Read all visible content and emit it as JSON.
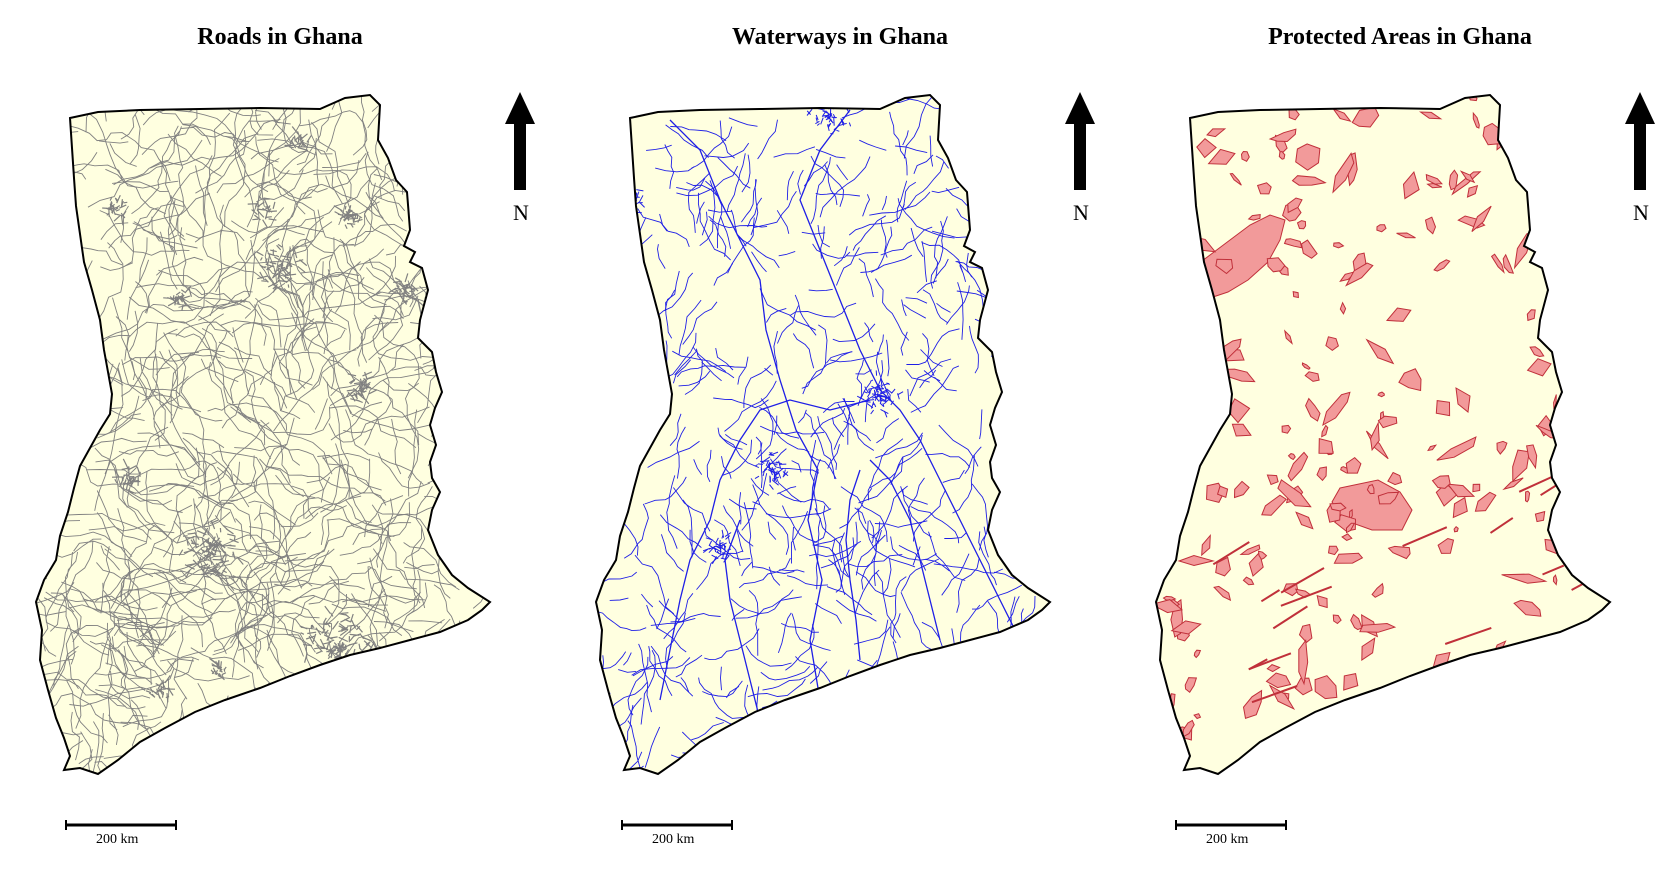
{
  "maps": [
    {
      "title": "Roads in Ghana",
      "layer": "roads",
      "feature_color": "#808080"
    },
    {
      "title": "Waterways in Ghana",
      "layer": "waterways",
      "feature_color": "#1f1fe6"
    },
    {
      "title": "Protected Areas in Ghana",
      "layer": "protected",
      "feature_color": "#e06b6b"
    }
  ],
  "north_label": "N",
  "scale_label": "200 km",
  "colors": {
    "land": "#ffffe0",
    "border": "#000000",
    "roads": "#808080",
    "waterways": "#1f1fe6",
    "protected_fill": "#f29a9a",
    "protected_stroke": "#c0303a"
  },
  "icons": {
    "north_arrow": "north-arrow-icon"
  }
}
